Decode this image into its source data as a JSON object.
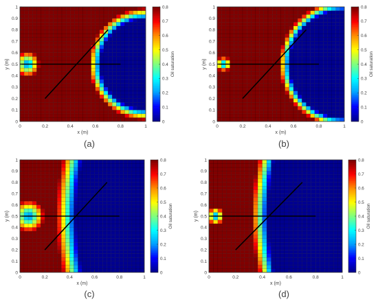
{
  "figure": {
    "panels": [
      {
        "id": "a",
        "label": "(a)"
      },
      {
        "id": "b",
        "label": "(b)"
      },
      {
        "id": "c",
        "label": "(c)"
      },
      {
        "id": "d",
        "label": "(d)"
      }
    ]
  },
  "colormap": [
    "#00008f",
    "#0000ff",
    "#00a0ff",
    "#00ffff",
    "#7fff7f",
    "#ffff00",
    "#ff9000",
    "#ff0000",
    "#800000"
  ],
  "chart_data": [
    {
      "type": "heatmap",
      "panel": "(a)",
      "xlabel": "x (m)",
      "ylabel": "y (m)",
      "xlim": [
        0,
        1
      ],
      "ylim": [
        0,
        1
      ],
      "xticks": [
        "0",
        "0.2",
        "0.4",
        "0.6",
        "0.8",
        "1"
      ],
      "yticks": [
        "0",
        "0.1",
        "0.2",
        "0.3",
        "0.4",
        "0.5",
        "0.6",
        "0.7",
        "0.8",
        "0.9",
        "1"
      ],
      "colorbar": {
        "label": "Oil saturation",
        "range": [
          0,
          0.8
        ],
        "ticks": [
          "0",
          "0.1",
          "0.2",
          "0.3",
          "0.4",
          "0.5",
          "0.6",
          "0.7",
          "0.8"
        ]
      },
      "grid_cells": [
        30,
        30
      ],
      "front": {
        "shape": "semicircle",
        "center": [
          1.0,
          0.5
        ],
        "radius": 0.36,
        "width": 0.09
      },
      "injector_blob": {
        "center": [
          0.06,
          0.5
        ],
        "rx": 0.06,
        "ry": 0.07
      },
      "fractures": [
        {
          "from": [
            0.0,
            0.5
          ],
          "to": [
            0.8,
            0.5
          ]
        },
        {
          "from": [
            0.2,
            0.2
          ],
          "to": [
            0.7,
            0.8
          ]
        }
      ]
    },
    {
      "type": "heatmap",
      "panel": "(b)",
      "xlabel": "x (m)",
      "ylabel": "y (m)",
      "xlim": [
        0,
        1
      ],
      "ylim": [
        0,
        1
      ],
      "xticks": [
        "0",
        "0.2",
        "0.4",
        "0.6",
        "0.8",
        "1"
      ],
      "yticks": [
        "0",
        "0.1",
        "0.2",
        "0.3",
        "0.4",
        "0.5",
        "0.6",
        "0.7",
        "0.8",
        "0.9",
        "1"
      ],
      "colorbar": {
        "label": "Oil saturation",
        "range": [
          0,
          0.8
        ],
        "ticks": [
          "0",
          "0.1",
          "0.2",
          "0.3",
          "0.4",
          "0.5",
          "0.6",
          "0.7",
          "0.8"
        ]
      },
      "grid_cells": [
        30,
        30
      ],
      "front": {
        "shape": "semicircle",
        "center": [
          1.0,
          0.5
        ],
        "radius": 0.43,
        "width": 0.08
      },
      "injector_blob": {
        "center": [
          0.05,
          0.5
        ],
        "rx": 0.04,
        "ry": 0.04
      },
      "fractures": [
        {
          "from": [
            0.0,
            0.5
          ],
          "to": [
            0.8,
            0.5
          ]
        },
        {
          "from": [
            0.2,
            0.2
          ],
          "to": [
            0.7,
            0.8
          ]
        }
      ]
    },
    {
      "type": "heatmap",
      "panel": "(c)",
      "xlabel": "x (m)",
      "ylabel": "y (m)",
      "xlim": [
        0,
        1
      ],
      "ylim": [
        0,
        1
      ],
      "xticks": [
        "0",
        "0.2",
        "0.4",
        "0.6",
        "0.8",
        "1"
      ],
      "yticks": [
        "0",
        "0.1",
        "0.2",
        "0.3",
        "0.4",
        "0.5",
        "0.6",
        "0.7",
        "0.8",
        "0.9",
        "1"
      ],
      "colorbar": {
        "label": "Oil saturation",
        "range": [
          0,
          0.8
        ],
        "ticks": [
          "0",
          "0.1",
          "0.2",
          "0.3",
          "0.4",
          "0.5",
          "0.6",
          "0.7",
          "0.8"
        ]
      },
      "grid_cells": [
        30,
        30
      ],
      "front": {
        "shape": "vertical",
        "position": 0.42,
        "width": 0.16,
        "bulge": 0.05
      },
      "injector_blob": {
        "center": [
          0.07,
          0.5
        ],
        "rx": 0.08,
        "ry": 0.09
      },
      "fractures": [
        {
          "from": [
            0.0,
            0.5
          ],
          "to": [
            0.8,
            0.5
          ]
        },
        {
          "from": [
            0.2,
            0.2
          ],
          "to": [
            0.7,
            0.8
          ]
        }
      ]
    },
    {
      "type": "heatmap",
      "panel": "(d)",
      "xlabel": "x (m)",
      "ylabel": "y (m)",
      "xlim": [
        0,
        1
      ],
      "ylim": [
        0,
        1
      ],
      "xticks": [
        "0",
        "0.2",
        "0.4",
        "0.6",
        "0.8",
        "1"
      ],
      "yticks": [
        "0",
        "0.1",
        "0.2",
        "0.3",
        "0.4",
        "0.5",
        "0.6",
        "0.7",
        "0.8",
        "0.9",
        "1"
      ],
      "colorbar": {
        "label": "Oil saturation",
        "range": [
          0,
          0.8
        ],
        "ticks": [
          "0",
          "0.1",
          "0.2",
          "0.3",
          "0.4",
          "0.5",
          "0.6",
          "0.7",
          "0.8"
        ]
      },
      "grid_cells": [
        30,
        30
      ],
      "front": {
        "shape": "vertical",
        "position": 0.43,
        "width": 0.12,
        "bulge": 0.05
      },
      "injector_blob": {
        "center": [
          0.05,
          0.5
        ],
        "rx": 0.04,
        "ry": 0.05
      },
      "fractures": [
        {
          "from": [
            0.0,
            0.5
          ],
          "to": [
            0.8,
            0.5
          ]
        },
        {
          "from": [
            0.2,
            0.2
          ],
          "to": [
            0.7,
            0.8
          ]
        }
      ]
    }
  ]
}
